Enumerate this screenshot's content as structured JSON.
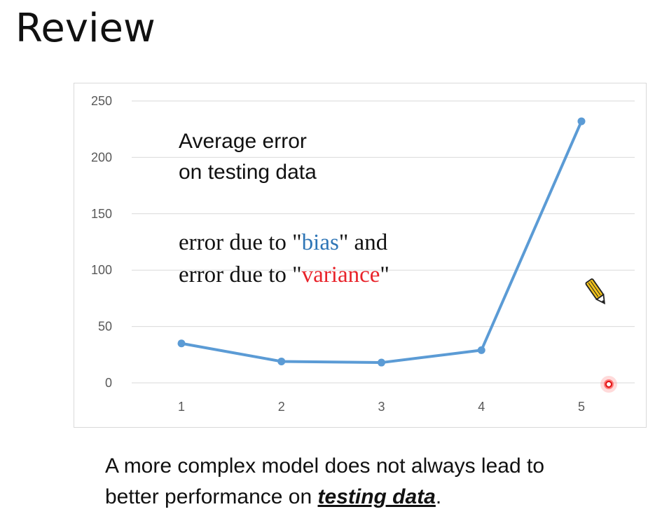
{
  "title": "Review",
  "annotation": {
    "line1": "Average error",
    "line2": "on testing data",
    "line3_prefix": "error due to \"",
    "bias_word": "bias",
    "line3_suffix": "\" and",
    "line4_prefix": "error due to \"",
    "variance_word": "variance",
    "line4_suffix": "\""
  },
  "caption": {
    "part1": "A more complex model does not always lead to",
    "part2": "better performance on ",
    "emphasis": "testing data",
    "end": "."
  },
  "colors": {
    "series": "#5b9bd5",
    "bias": "#2e75b6",
    "variance": "#e8232a",
    "grid": "#d9d9d9"
  },
  "icons": [
    "pencil-cursor-icon",
    "laser-pointer-icon"
  ],
  "chart_data": {
    "type": "line",
    "x": [
      1,
      2,
      3,
      4,
      5
    ],
    "categories": [
      "1",
      "2",
      "3",
      "4",
      "5"
    ],
    "values": [
      35,
      19,
      18,
      29,
      232
    ],
    "yticks": [
      0,
      50,
      100,
      150,
      200,
      250
    ],
    "ylim": [
      0,
      250
    ],
    "grid": true,
    "legend": "none"
  }
}
